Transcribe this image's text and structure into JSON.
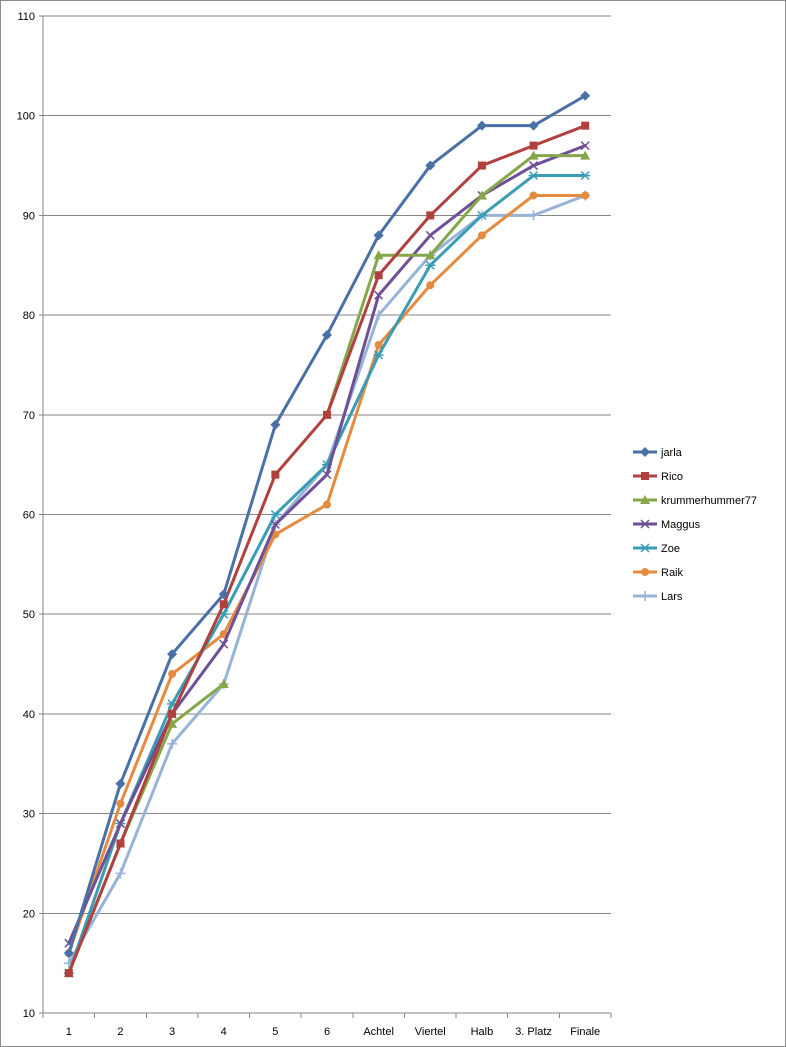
{
  "chart_data": {
    "type": "line",
    "title": "",
    "xlabel": "",
    "ylabel": "",
    "ylim": [
      10,
      110
    ],
    "yticks": [
      10,
      20,
      30,
      40,
      50,
      60,
      70,
      80,
      90,
      100,
      110
    ],
    "grid": "horizontal",
    "legend_position": "right",
    "categories": [
      "1",
      "2",
      "3",
      "4",
      "5",
      "6",
      "Achtel",
      "Viertel",
      "Halb",
      "3. Platz",
      "Finale"
    ],
    "series": [
      {
        "name": "jarla",
        "color": "#4a71a7",
        "marker": "diamond",
        "values": [
          16,
          33,
          46,
          52,
          69,
          78,
          88,
          95,
          99,
          99,
          102
        ]
      },
      {
        "name": "Rico",
        "color": "#b0413e",
        "marker": "square",
        "values": [
          14,
          27,
          40,
          51,
          64,
          70,
          84,
          90,
          95,
          97,
          99
        ]
      },
      {
        "name": "krummerhummer77",
        "color": "#86a64a",
        "marker": "triangle",
        "values": [
          14,
          27,
          39,
          43,
          null,
          70,
          86,
          86,
          92,
          96,
          96
        ]
      },
      {
        "name": "Maggus",
        "color": "#6e5096",
        "marker": "x",
        "values": [
          17,
          29,
          40,
          47,
          59,
          64,
          82,
          88,
          92,
          95,
          97
        ]
      },
      {
        "name": "Zoe",
        "color": "#3a9cb5",
        "marker": "star",
        "values": [
          14,
          29,
          41,
          50,
          60,
          65,
          76,
          85,
          90,
          94,
          94
        ]
      },
      {
        "name": "Raik",
        "color": "#e58a3e",
        "marker": "circle",
        "values": [
          16,
          31,
          44,
          48,
          58,
          61,
          77,
          83,
          88,
          92,
          92
        ]
      },
      {
        "name": "Lars",
        "color": "#98b3d8",
        "marker": "plus",
        "values": [
          15,
          24,
          37,
          43,
          59,
          65,
          80,
          86,
          90,
          90,
          92
        ]
      }
    ]
  }
}
